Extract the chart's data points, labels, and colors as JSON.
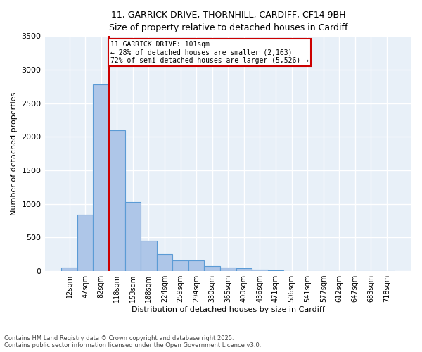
{
  "title_line1": "11, GARRICK DRIVE, THORNHILL, CARDIFF, CF14 9BH",
  "title_line2": "Size of property relative to detached houses in Cardiff",
  "xlabel": "Distribution of detached houses by size in Cardiff",
  "ylabel": "Number of detached properties",
  "bar_color": "#aec6e8",
  "bar_edge_color": "#5b9bd5",
  "background_color": "#e8f0f8",
  "grid_color": "#ffffff",
  "categories": [
    "12sqm",
    "47sqm",
    "82sqm",
    "118sqm",
    "153sqm",
    "188sqm",
    "224sqm",
    "259sqm",
    "294sqm",
    "330sqm",
    "365sqm",
    "400sqm",
    "436sqm",
    "471sqm",
    "506sqm",
    "541sqm",
    "577sqm",
    "612sqm",
    "647sqm",
    "683sqm",
    "718sqm"
  ],
  "values": [
    55,
    840,
    2780,
    2100,
    1030,
    450,
    250,
    155,
    155,
    70,
    55,
    40,
    25,
    15,
    5,
    5,
    2,
    1,
    0,
    0,
    0
  ],
  "annotation_line1": "11 GARRICK DRIVE: 101sqm",
  "annotation_line2": "← 28% of detached houses are smaller (2,163)",
  "annotation_line3": "72% of semi-detached houses are larger (5,526) →",
  "annotation_box_color": "#cc0000",
  "vline_color": "#cc0000",
  "ylim": [
    0,
    3500
  ],
  "yticks": [
    0,
    500,
    1000,
    1500,
    2000,
    2500,
    3000,
    3500
  ],
  "footnote_line1": "Contains HM Land Registry data © Crown copyright and database right 2025.",
  "footnote_line2": "Contains public sector information licensed under the Open Government Licence v3.0."
}
